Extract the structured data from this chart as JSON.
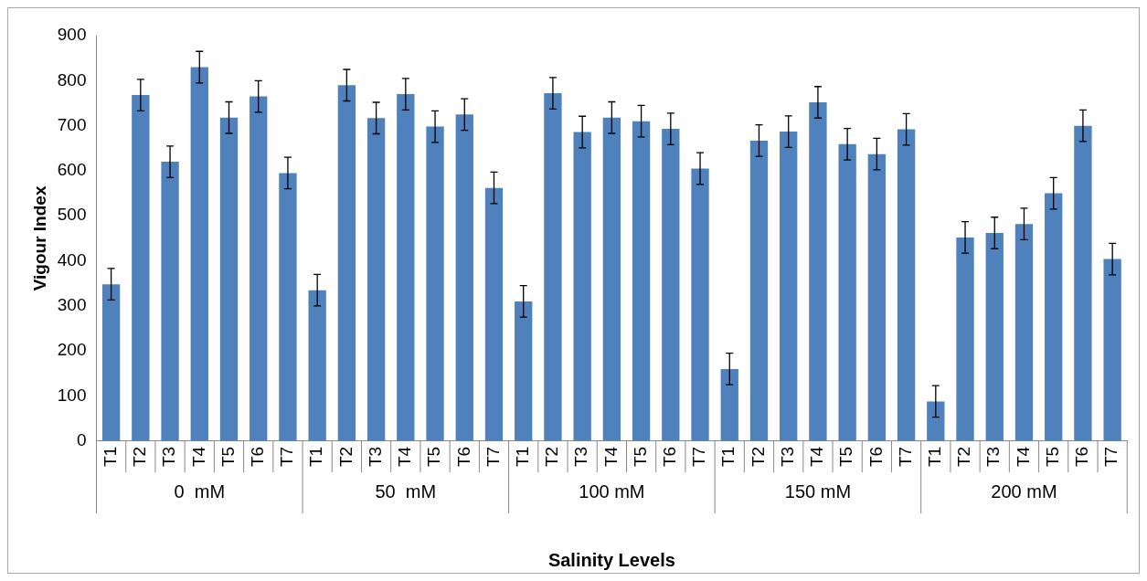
{
  "chart_data": {
    "type": "bar",
    "ylabel": "Vigour Index",
    "xlabel": "Salinity Levels",
    "categories": [
      "T1",
      "T2",
      "T3",
      "T4",
      "T5",
      "T6",
      "T7",
      "T1",
      "T2",
      "T3",
      "T4",
      "T5",
      "T6",
      "T7",
      "T1",
      "T2",
      "T3",
      "T4",
      "T5",
      "T6",
      "T7",
      "T1",
      "T2",
      "T3",
      "T4",
      "T5",
      "T6",
      "T7",
      "T1",
      "T2",
      "T3",
      "T4",
      "T5",
      "T6",
      "T7"
    ],
    "annotations": [
      "0  mM",
      "50  mM",
      "100 mM",
      "150 mM",
      "200 mM"
    ],
    "series": [
      {
        "color": "#4f81bd",
        "values": [
          348,
          768,
          620,
          830,
          718,
          765,
          595,
          335,
          790,
          717,
          770,
          698,
          725,
          562,
          310,
          772,
          686,
          718,
          710,
          693,
          605,
          160,
          667,
          687,
          752,
          659,
          637,
          692,
          88,
          452,
          462,
          482,
          550,
          700,
          404
        ],
        "errors": [
          35,
          35,
          35,
          35,
          35,
          35,
          35,
          35,
          35,
          35,
          35,
          35,
          35,
          35,
          35,
          35,
          35,
          35,
          35,
          35,
          35,
          35,
          35,
          35,
          35,
          35,
          35,
          35,
          35,
          35,
          35,
          35,
          35,
          35,
          35
        ]
      }
    ],
    "ylim": [
      0,
      900
    ],
    "yticks": [
      0,
      100,
      200,
      300,
      400,
      500,
      600,
      700,
      800,
      900
    ],
    "grid": false,
    "legend": false
  }
}
